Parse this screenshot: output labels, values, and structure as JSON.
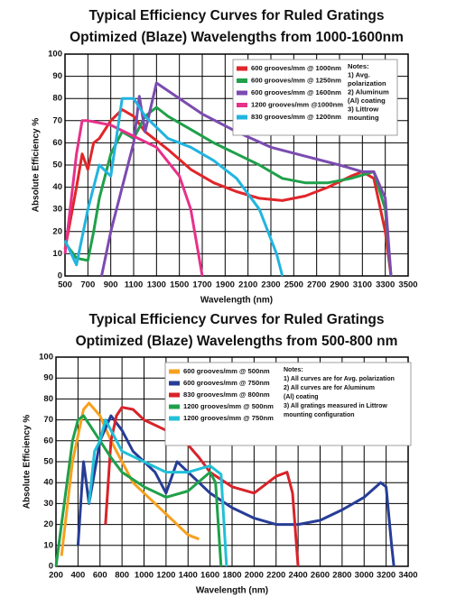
{
  "chart_data": [
    {
      "type": "line",
      "title": "Typical Efficiency Curves  for Ruled Gratings",
      "subtitle": "Optimized (Blaze) Wavelengths from 1000-1600nm",
      "x_label": "Wavelength (nm)",
      "y_label": "Absolute Efficiency %",
      "xlim": [
        500,
        3500
      ],
      "xticks": [
        500,
        700,
        900,
        1100,
        1300,
        1500,
        1700,
        1900,
        2100,
        2300,
        2500,
        2700,
        2900,
        3100,
        3300,
        3500
      ],
      "ylim": [
        0,
        100
      ],
      "yticks": [
        0,
        10,
        20,
        30,
        40,
        50,
        60,
        70,
        80,
        90,
        100
      ],
      "grid": true,
      "legend": "upper right",
      "notes": [
        "Notes:",
        "1) Avg.",
        "polarization",
        "2) Aluminum",
        "(Al) coating",
        "3) Littrow",
        "mounting"
      ],
      "series": [
        {
          "name": "600 grooves/mm @ 1000nm",
          "color": "#e0262a",
          "x": [
            500,
            600,
            650,
            700,
            750,
            800,
            900,
            1000,
            1100,
            1200,
            1400,
            1600,
            1800,
            2000,
            2200,
            2400,
            2600,
            2800,
            3000,
            3100,
            3200,
            3300,
            3350
          ],
          "values": [
            12,
            40,
            55,
            48,
            60,
            62,
            70,
            75,
            72,
            65,
            57,
            48,
            42,
            38,
            35,
            34,
            36,
            40,
            45,
            47,
            44,
            20,
            0
          ]
        },
        {
          "name": "600 grooves/mm @ 1250nm",
          "color": "#1fa04a",
          "x": [
            500,
            600,
            700,
            750,
            800,
            900,
            1000,
            1100,
            1200,
            1300,
            1400,
            1600,
            1800,
            2000,
            2200,
            2400,
            2600,
            2800,
            3000,
            3200,
            3300,
            3350
          ],
          "values": [
            15,
            8,
            7,
            20,
            35,
            55,
            65,
            62,
            72,
            76,
            72,
            66,
            60,
            55,
            50,
            44,
            42,
            42,
            44,
            47,
            30,
            0
          ]
        },
        {
          "name": "600 grooves/mm @ 1600nm",
          "color": "#7b4bb0",
          "x": [
            820,
            900,
            1000,
            1100,
            1150,
            1200,
            1300,
            1500,
            1700,
            2000,
            2300,
            2600,
            2900,
            3100,
            3200,
            3300,
            3350
          ],
          "values": [
            0,
            20,
            40,
            60,
            81,
            65,
            87,
            80,
            73,
            65,
            58,
            54,
            50,
            47,
            47,
            35,
            0
          ]
        },
        {
          "name": "1200 grooves/mm @1000nm",
          "color": "#e8308a",
          "x": [
            500,
            600,
            650,
            700,
            900,
            1100,
            1300,
            1500,
            1600,
            1700
          ],
          "values": [
            10,
            55,
            70,
            70,
            68,
            63,
            58,
            45,
            30,
            0
          ]
        },
        {
          "name": "830 grooves/mm @ 1200nm",
          "color": "#21b4e0",
          "x": [
            500,
            600,
            700,
            800,
            900,
            1000,
            1100,
            1200,
            1400,
            1600,
            1800,
            2000,
            2200,
            2350,
            2400
          ],
          "values": [
            16,
            5,
            30,
            50,
            45,
            80,
            80,
            72,
            62,
            58,
            52,
            44,
            30,
            10,
            0
          ]
        }
      ]
    },
    {
      "type": "line",
      "title": "Typical Efficiency Curves  for Ruled Gratings",
      "subtitle": "Optimized (Blaze) Wavelengths from 500-800 nm",
      "x_label": "Wavelength (nm)",
      "y_label": "Absolute Efficiency %",
      "xlim": [
        200,
        3400
      ],
      "xticks": [
        200,
        400,
        600,
        800,
        1000,
        1200,
        1400,
        1600,
        1800,
        2000,
        2200,
        2400,
        2600,
        2800,
        3000,
        3200,
        3400
      ],
      "ylim": [
        0,
        100
      ],
      "yticks": [
        0,
        10,
        20,
        30,
        40,
        50,
        60,
        70,
        80,
        90,
        100
      ],
      "grid": true,
      "legend": "upper right",
      "notes": [
        "Notes:",
        "1) All curves are for Avg. polarization",
        "2) All curves are for Aluminum",
        "(Al) coating",
        "3) All gratings measured in Littrow",
        "mounting configuration"
      ],
      "series": [
        {
          "name": "600 grooves/mm @ 500nm",
          "color": "#f7a01e",
          "x": [
            250,
            350,
            450,
            500,
            600,
            700,
            800,
            900,
            1000,
            1100,
            1200,
            1300,
            1400,
            1500
          ],
          "values": [
            5,
            50,
            75,
            78,
            72,
            60,
            50,
            40,
            35,
            30,
            25,
            20,
            15,
            13
          ]
        },
        {
          "name": "600 grooves/mm @ 750nm",
          "color": "#263d96",
          "x": [
            400,
            450,
            500,
            600,
            700,
            800,
            900,
            1000,
            1100,
            1200,
            1300,
            1400,
            1600,
            1800,
            2000,
            2200,
            2400,
            2600,
            2800,
            3000,
            3150,
            3200,
            3250,
            3270
          ],
          "values": [
            10,
            50,
            30,
            60,
            72,
            65,
            55,
            50,
            45,
            35,
            50,
            45,
            35,
            28,
            23,
            20,
            20,
            22,
            27,
            33,
            40,
            38,
            10,
            0
          ]
        },
        {
          "name": "830 grooves/mm @ 800nm",
          "color": "#d8232a",
          "x": [
            650,
            700,
            750,
            800,
            900,
            1000,
            1200,
            1400,
            1500,
            1600,
            1800,
            2000,
            2200,
            2300,
            2350,
            2400
          ],
          "values": [
            20,
            60,
            72,
            76,
            75,
            70,
            65,
            58,
            52,
            45,
            38,
            35,
            43,
            45,
            35,
            0
          ]
        },
        {
          "name": "1200 grooves/mm @ 500nm",
          "color": "#1fa04a",
          "x": [
            200,
            250,
            300,
            350,
            400,
            450,
            500,
            600,
            700,
            800,
            1000,
            1200,
            1400,
            1600,
            1650,
            1700
          ],
          "values": [
            0,
            20,
            40,
            60,
            70,
            72,
            68,
            60,
            52,
            45,
            38,
            33,
            36,
            45,
            40,
            0
          ]
        },
        {
          "name": "1200 grooves/mm @ 750nm",
          "color": "#21c0d8",
          "x": [
            500,
            550,
            600,
            650,
            700,
            800,
            1000,
            1200,
            1400,
            1600,
            1700,
            1750
          ],
          "values": [
            30,
            55,
            60,
            70,
            65,
            55,
            50,
            45,
            45,
            48,
            44,
            0
          ]
        }
      ]
    }
  ]
}
